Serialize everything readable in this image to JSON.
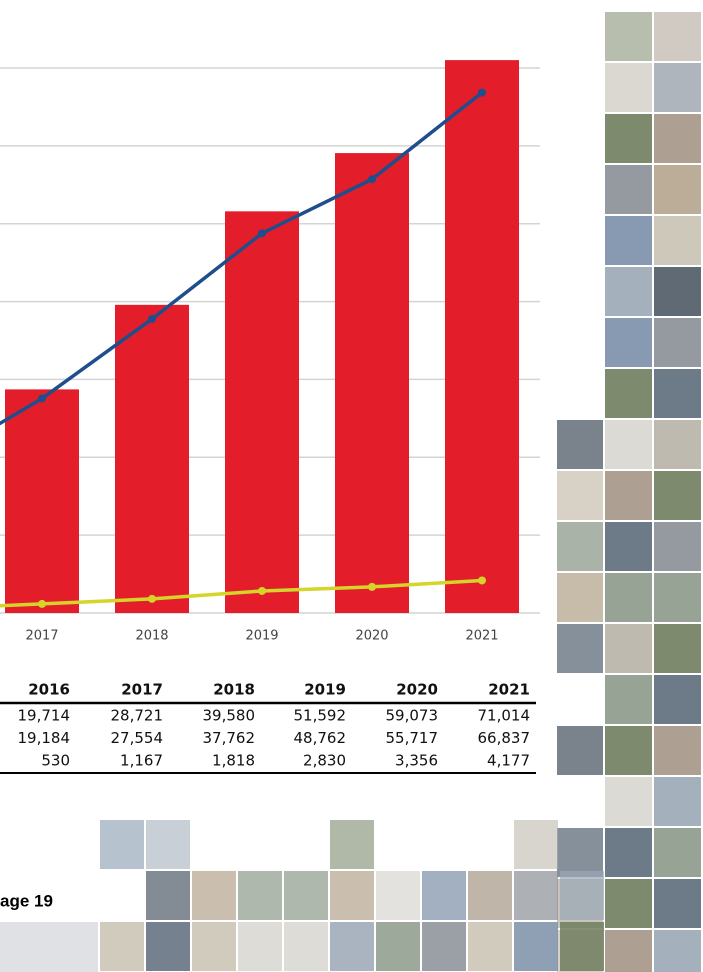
{
  "chart_data": {
    "type": "bar_line",
    "categories": [
      null,
      "2017",
      "2018",
      "2019",
      "2020",
      "2021"
    ],
    "series": [
      {
        "kind": "bar",
        "color": "#e31e2a",
        "values": [
          19714,
          28721,
          39580,
          51592,
          59073,
          71014
        ]
      },
      {
        "kind": "line",
        "color": "#1f4e8c",
        "values": [
          19184,
          27554,
          37762,
          48762,
          55717,
          66837
        ]
      },
      {
        "kind": "line",
        "color": "#d4d42a",
        "values": [
          530,
          1167,
          1818,
          2830,
          3356,
          4177
        ]
      }
    ],
    "ylim": [
      0,
      70000
    ],
    "yticks": [
      0,
      10000,
      20000,
      30000,
      40000,
      50000,
      60000,
      70000
    ],
    "grid": true
  },
  "table": {
    "header": [
      "2016",
      "2017",
      "2018",
      "2019",
      "2020",
      "2021"
    ],
    "rows": [
      [
        "19,714",
        "28,721",
        "39,580",
        "51,592",
        "59,073",
        "71,014"
      ],
      [
        "19,184",
        "27,554",
        "37,762",
        "48,762",
        "55,717",
        "66,837"
      ],
      [
        "530",
        "1,167",
        "1,818",
        "2,830",
        "3,356",
        "4,177"
      ]
    ]
  },
  "footer": {
    "page": "age 19"
  }
}
